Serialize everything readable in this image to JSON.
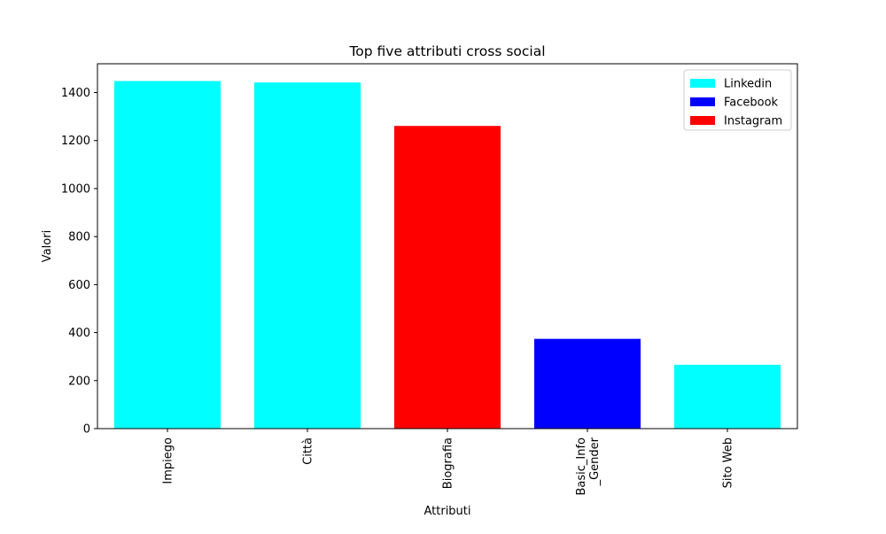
{
  "chart_data": {
    "type": "bar",
    "title": "Top five attributi cross social",
    "xlabel": "Attributi",
    "ylabel": "Valori",
    "categories": [
      "Impiego",
      "Città",
      "Biografia",
      "Basic_Info\n_Gender",
      "Sito Web"
    ],
    "category_lines": [
      [
        "Impiego"
      ],
      [
        "Città"
      ],
      [
        "Biografia"
      ],
      [
        "Basic_Info",
        "_Gender"
      ],
      [
        "Sito Web"
      ]
    ],
    "values": [
      1448,
      1442,
      1261,
      374,
      266
    ],
    "bar_series": [
      "Linkedin",
      "Linkedin",
      "Instagram",
      "Facebook",
      "Linkedin"
    ],
    "ylim": [
      0,
      1520
    ],
    "yticks": [
      0,
      200,
      400,
      600,
      800,
      1000,
      1200,
      1400
    ],
    "legend": {
      "position": "top-right",
      "entries": [
        {
          "name": "Linkedin",
          "color": "#00ffff"
        },
        {
          "name": "Facebook",
          "color": "#0000ff"
        },
        {
          "name": "Instagram",
          "color": "#ff0000"
        }
      ]
    },
    "grid": false
  }
}
